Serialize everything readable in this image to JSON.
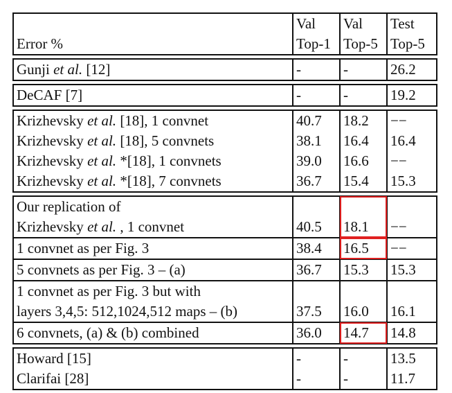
{
  "header": {
    "cells": [
      [
        "Error %"
      ],
      [
        "Val",
        "Top-1"
      ],
      [
        "Val",
        "Top-5"
      ],
      [
        "Test",
        "Top-5"
      ]
    ]
  },
  "sections": [
    {
      "rules": false,
      "rows": [
        {
          "label": [
            [
              {
                "t": "Gunji "
              },
              {
                "t": "et al.",
                "i": true
              },
              {
                "t": " [12]"
              }
            ]
          ],
          "v1": "-",
          "v5": "-",
          "t5": "26.2"
        }
      ]
    },
    {
      "rules": false,
      "rows": [
        {
          "label": [
            [
              {
                "t": "DeCAF [7]"
              }
            ]
          ],
          "v1": "-",
          "v5": "-",
          "t5": "19.2"
        }
      ]
    },
    {
      "rules": false,
      "rows": [
        {
          "label": [
            [
              {
                "t": "Krizhevsky "
              },
              {
                "t": "et al.",
                "i": true
              },
              {
                "t": " [18], 1 convnet"
              }
            ]
          ],
          "v1": "40.7",
          "v5": "18.2",
          "t5": "−−"
        },
        {
          "label": [
            [
              {
                "t": "Krizhevsky "
              },
              {
                "t": "et al.",
                "i": true
              },
              {
                "t": " [18], 5 convnets"
              }
            ]
          ],
          "v1": "38.1",
          "v5": "16.4",
          "t5": "16.4"
        },
        {
          "label": [
            [
              {
                "t": "Krizhevsky "
              },
              {
                "t": "et al.",
                "i": true
              },
              {
                "t": " *[18], 1 convnets"
              }
            ]
          ],
          "v1": "39.0",
          "v5": "16.6",
          "t5": "−−"
        },
        {
          "label": [
            [
              {
                "t": "Krizhevsky "
              },
              {
                "t": "et al.",
                "i": true
              },
              {
                "t": " *[18], 7 convnets"
              }
            ]
          ],
          "v1": "36.7",
          "v5": "15.4",
          "t5": "15.3"
        }
      ]
    },
    {
      "rules": true,
      "rows": [
        {
          "label": [
            [
              {
                "t": "Our replication of"
              }
            ],
            [
              {
                "t": "Krizhevsky "
              },
              {
                "t": "et al.",
                "i": true
              },
              {
                "t": " , 1 convnet"
              }
            ]
          ],
          "v1": "40.5",
          "v5": "18.1",
          "t5": "−−",
          "highlight": true
        },
        {
          "label": [
            [
              {
                "t": "1 convnet as per Fig. 3"
              }
            ]
          ],
          "v1": "38.4",
          "v5": "16.5",
          "t5": "−−",
          "highlight": true
        },
        {
          "label": [
            [
              {
                "t": "5 convnets as per Fig. 3 – (a)"
              }
            ]
          ],
          "v1": "36.7",
          "v5": "15.3",
          "t5": "15.3"
        },
        {
          "label": [
            [
              {
                "t": "1 convnet as per Fig. 3 but with"
              }
            ],
            [
              {
                "t": "layers 3,4,5: 512,1024,512 maps – (b)"
              }
            ]
          ],
          "v1": "37.5",
          "v5": "16.0",
          "t5": "16.1"
        },
        {
          "label": [
            [
              {
                "t": "6 convnets, (a) & (b) combined"
              }
            ]
          ],
          "v1": "36.0",
          "v5": "14.7",
          "t5": "14.8",
          "highlight": true
        }
      ]
    },
    {
      "rules": false,
      "rows": [
        {
          "label": [
            [
              {
                "t": "Howard [15]"
              }
            ]
          ],
          "v1": "-",
          "v5": "-",
          "t5": "13.5"
        },
        {
          "label": [
            [
              {
                "t": "Clarifai [28]"
              }
            ]
          ],
          "v1": "-",
          "v5": "-",
          "t5": "11.7"
        }
      ]
    }
  ]
}
